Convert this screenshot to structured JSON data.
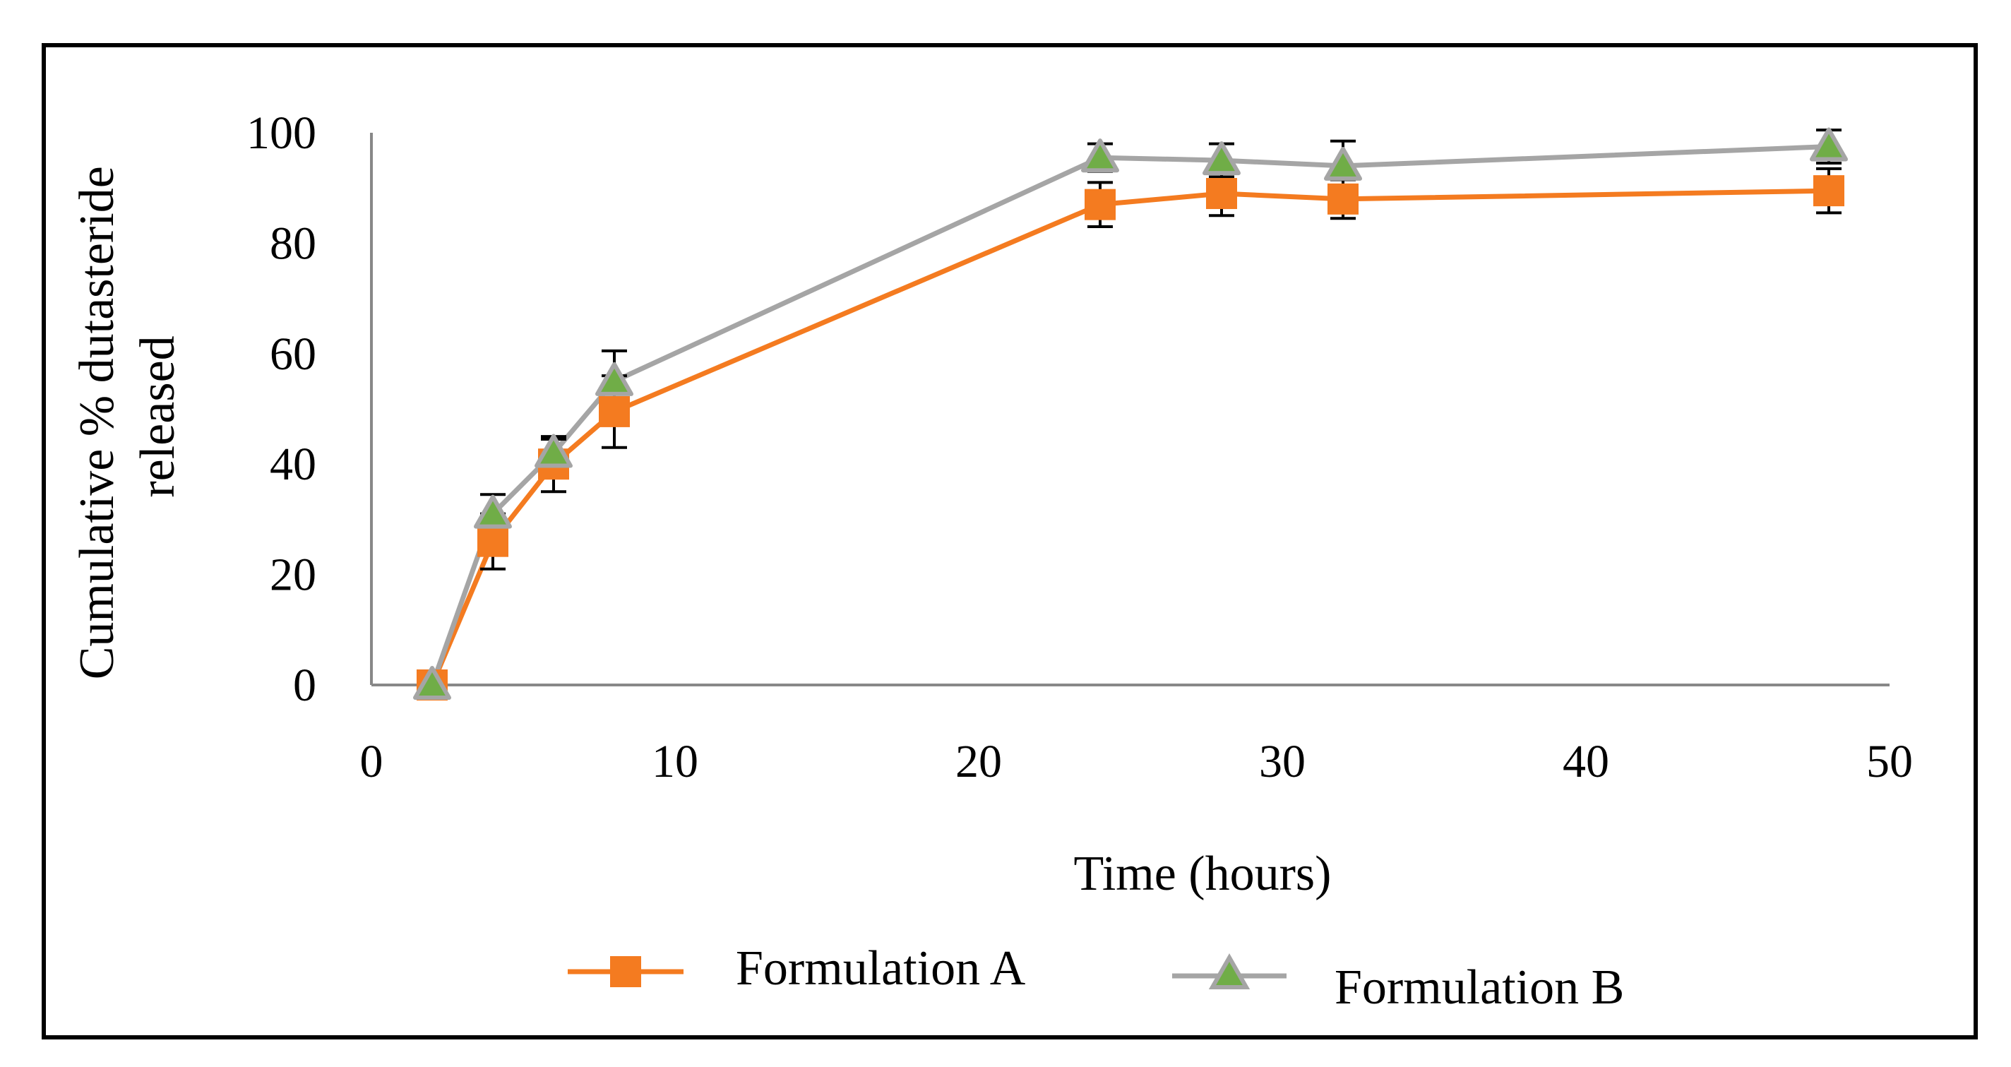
{
  "chart_data": {
    "type": "line",
    "title": "",
    "xlabel": "Time (hours)",
    "ylabel": [
      "Cumulative % dutasteride",
      "released"
    ],
    "xlim": [
      0,
      50
    ],
    "ylim": [
      0,
      100
    ],
    "xticks": [
      0,
      10,
      20,
      30,
      40,
      50
    ],
    "yticks": [
      0,
      20,
      40,
      60,
      80,
      100
    ],
    "grid": false,
    "legend_position": "bottom",
    "x": [
      2,
      4,
      6,
      8,
      24,
      28,
      32,
      48
    ],
    "series": [
      {
        "name": "Formulation A",
        "marker": "square",
        "color": "#F47B20",
        "values": [
          0,
          26,
          40,
          49.5,
          87,
          89,
          88,
          89.5
        ],
        "errors": [
          0,
          5,
          5,
          6.5,
          4,
          4,
          3.5,
          4
        ]
      },
      {
        "name": "Formulation B",
        "marker": "triangle",
        "color": "#A5A5A5",
        "marker_fill": "#70AD47",
        "values": [
          0,
          31,
          42,
          55,
          95.5,
          95,
          94,
          97.5
        ],
        "errors": [
          0,
          3.5,
          2.5,
          5.5,
          2.5,
          3,
          4.5,
          3
        ]
      }
    ],
    "extra_marker": {
      "name": "diamond-marker",
      "x": 2,
      "y": 0.5,
      "color": "#2E75B6"
    }
  },
  "colors": {
    "frame": "#000000",
    "axis": "#888888",
    "error_bar": "#000000"
  }
}
